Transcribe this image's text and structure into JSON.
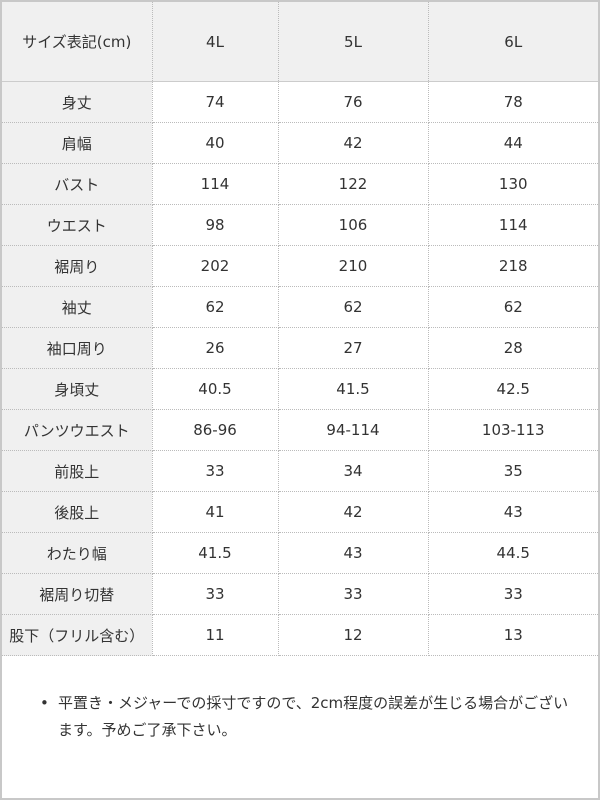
{
  "table": {
    "header": [
      "サイズ表記(cm)",
      "4L",
      "5L",
      "6L"
    ],
    "rows": [
      [
        "身丈",
        "74",
        "76",
        "78"
      ],
      [
        "肩幅",
        "40",
        "42",
        "44"
      ],
      [
        "バスト",
        "114",
        "122",
        "130"
      ],
      [
        "ウエスト",
        "98",
        "106",
        "114"
      ],
      [
        "裾周り",
        "202",
        "210",
        "218"
      ],
      [
        "袖丈",
        "62",
        "62",
        "62"
      ],
      [
        "袖口周り",
        "26",
        "27",
        "28"
      ],
      [
        "身頃丈",
        "40.5",
        "41.5",
        "42.5"
      ],
      [
        "パンツウエスト",
        "86-96",
        "94-114",
        "103-113"
      ],
      [
        "前股上",
        "33",
        "34",
        "35"
      ],
      [
        "後股上",
        "41",
        "42",
        "43"
      ],
      [
        "わたり幅",
        "41.5",
        "43",
        "44.5"
      ],
      [
        "裾周り切替",
        "33",
        "33",
        "33"
      ],
      [
        "股下（フリル含む）",
        "11",
        "12",
        "13"
      ]
    ]
  },
  "note": {
    "bullet": "•",
    "text": "平置き・メジャーでの採寸ですので、2cm程度の誤差が生じる場合がございます。予めご了承下さい。"
  }
}
